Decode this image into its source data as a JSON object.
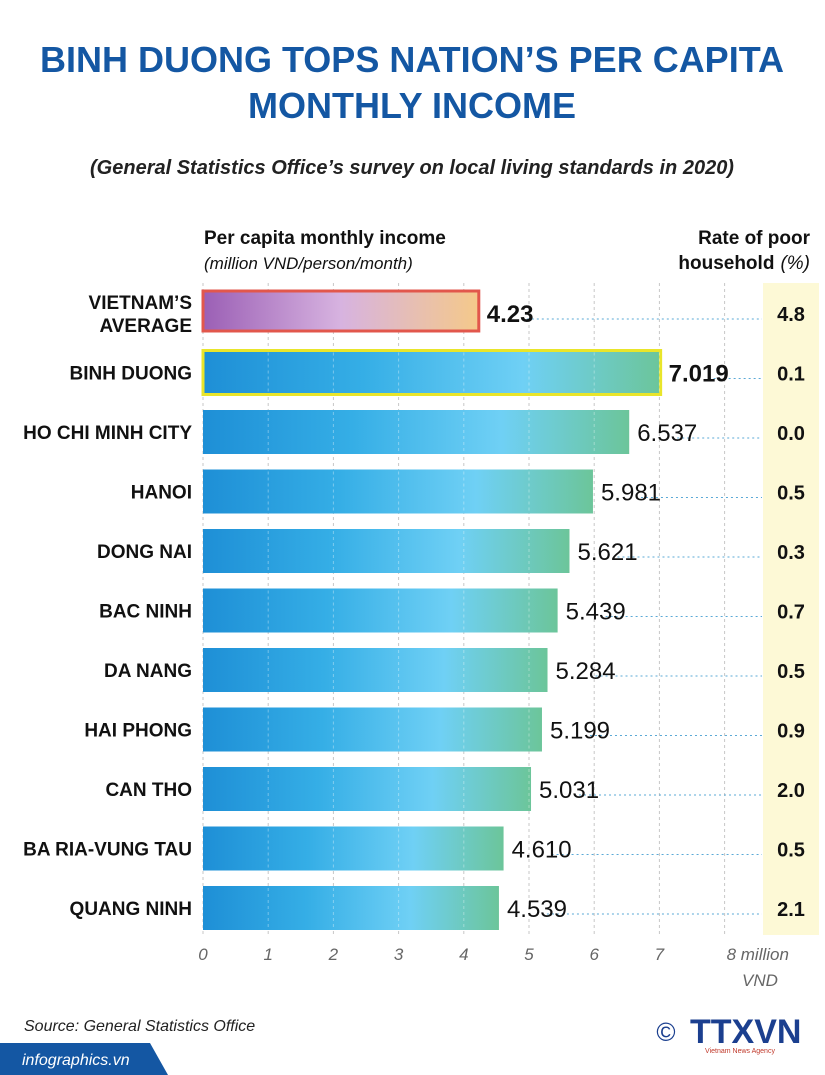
{
  "title_line1": "BINH DUONG TOPS NATION’S PER CAPITA",
  "title_line2": "MONTHLY INCOME",
  "subtitle": "(General Statistics Office’s survey on local living standards in 2020)",
  "left_header_line1": "Per capita monthly income",
  "left_header_line2": "(million VND/person/month)",
  "right_header_line1": "Rate of poor",
  "right_header_line2": "household",
  "right_header_unit": "(%)",
  "source": "Source: General Statistics Office",
  "site": "infographics.vn",
  "copyright": "©",
  "logo_text": "TTXVN",
  "logo_sub": "Vietnam News Agency",
  "colors": {
    "title": "#1457a3",
    "bar_blue": "#1e8fd6",
    "bar_light": "#6fd0f5",
    "bar_green": "#6cc59a",
    "avg_purple": "#9b5fb5",
    "avg_peach": "#f5c98a",
    "avg_border": "#e2574c",
    "highlight_border": "#e9e52a",
    "rate_column": "#fdf9d6"
  },
  "chart_data": {
    "type": "bar",
    "orientation": "horizontal",
    "title": "BINH DUONG TOPS NATION’S PER CAPITA MONTHLY INCOME",
    "xlabel": "million VND",
    "xlim": [
      0,
      8
    ],
    "ticks": [
      0,
      1,
      2,
      3,
      4,
      5,
      6,
      7,
      8
    ],
    "tick_labels": [
      "0",
      "1",
      "2",
      "3",
      "4",
      "5",
      "6",
      "7",
      "8 million"
    ],
    "tick_unit_line2": "VND",
    "average": {
      "label_line1": "VIETNAM’S",
      "label_line2": "AVERAGE",
      "value": 4.23,
      "value_label": "4.23",
      "rate_label": "4.8"
    },
    "categories": [
      "BINH DUONG",
      "HO CHI MINH CITY",
      "HANOI",
      "DONG NAI",
      "BAC NINH",
      "DA NANG",
      "HAI PHONG",
      "CAN THO",
      "BA RIA-VUNG TAU",
      "QUANG NINH"
    ],
    "values": [
      7.019,
      6.537,
      5.981,
      5.621,
      5.439,
      5.284,
      5.199,
      5.031,
      4.61,
      4.539
    ],
    "value_labels": [
      "7.019",
      "6.537",
      "5.981",
      "5.621",
      "5.439",
      "5.284",
      "5.199",
      "5.031",
      "4.610",
      "4.539"
    ],
    "poor_rate_labels": [
      "0.1",
      "0.0",
      "0.5",
      "0.3",
      "0.7",
      "0.5",
      "0.9",
      "2.0",
      "0.5",
      "2.1"
    ],
    "highlight": "BINH DUONG"
  }
}
